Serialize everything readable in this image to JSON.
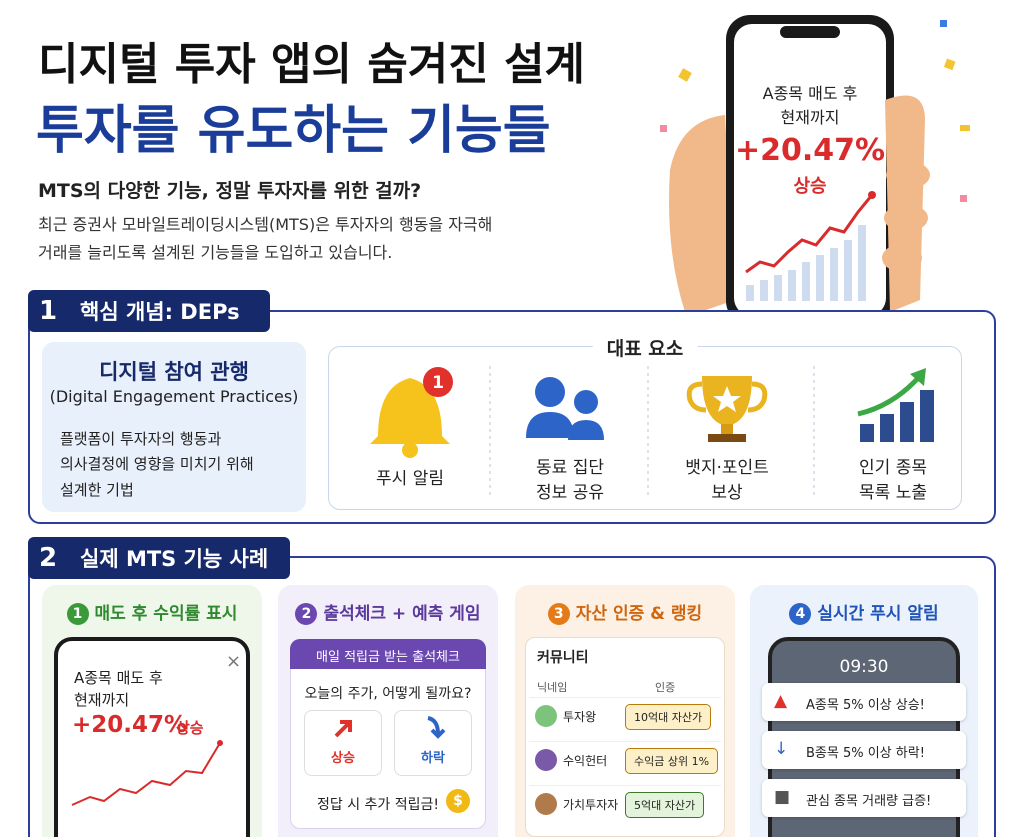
{
  "header": {
    "title_line1": "디지털 투자 앱의 숨겨진 설계",
    "title_line2": "투자를 유도하는 기능들",
    "subtitle": "MTS의 다양한 기능, 정말 투자자를 위한 걸까?",
    "description": [
      "최근 증권사 모바일트레이딩시스템(MTS)은 투자자의 행동을 자극해",
      "거래를 늘리도록 설계된 기능들을 도입하고 있습니다."
    ]
  },
  "hero_phone": {
    "line1": "A종목 매도 후",
    "line2": "현재까지",
    "value": "+20.47%",
    "status": "상승"
  },
  "section1": {
    "number": "1",
    "title": "핵심 개념: DEPs",
    "concept": {
      "title": "디지털 참여 관행",
      "english": "(Digital Engagement Practices)",
      "description": [
        "플랫폼이 투자자의 행동과",
        "의사결정에 영향을 미치기 위해",
        "설계한 기법"
      ]
    },
    "elements_title": "대표 요소",
    "badge": "1",
    "elements": [
      [
        "푸시 알림"
      ],
      [
        "동료 집단",
        "정보 공유"
      ],
      [
        "뱃지·포인트",
        "보상"
      ],
      [
        "인기 종목",
        "목록 노출"
      ]
    ]
  },
  "section2": {
    "number": "2",
    "title": "실제 MTS 기능 사례",
    "cards": [
      {
        "number": "1",
        "title": "매도 후 수익률 표시",
        "close": "×",
        "line1": "A종목 매도 후",
        "line2": "현재까지",
        "value": "+20.47%",
        "status": "상승"
      },
      {
        "number": "2",
        "title": "출석체크 + 예측 게임",
        "banner": "매일 적립금 받는 출석체크",
        "question": "오늘의 주가, 어떻게 될까요?",
        "options": [
          "상승",
          "하락"
        ],
        "footer": "정답 시 추가 적립금!",
        "coin": "$"
      },
      {
        "number": "3",
        "title": "자산 인증 & 랭킹",
        "header": "커뮤니티",
        "columns": [
          "닉네임",
          "인증"
        ],
        "rows": [
          [
            "투자왕",
            "10억대 자산가"
          ],
          [
            "수익헌터",
            "수익금 상위 1%"
          ],
          [
            "가치투자자",
            "5억대 자산가"
          ]
        ]
      },
      {
        "number": "4",
        "title": "실시간 푸시 알림",
        "time": "09:30",
        "alerts": [
          "A종목 5% 이상 상승!",
          "B종목 5% 이상 하락!",
          "관심 종목 거래량 급증!"
        ]
      }
    ]
  }
}
